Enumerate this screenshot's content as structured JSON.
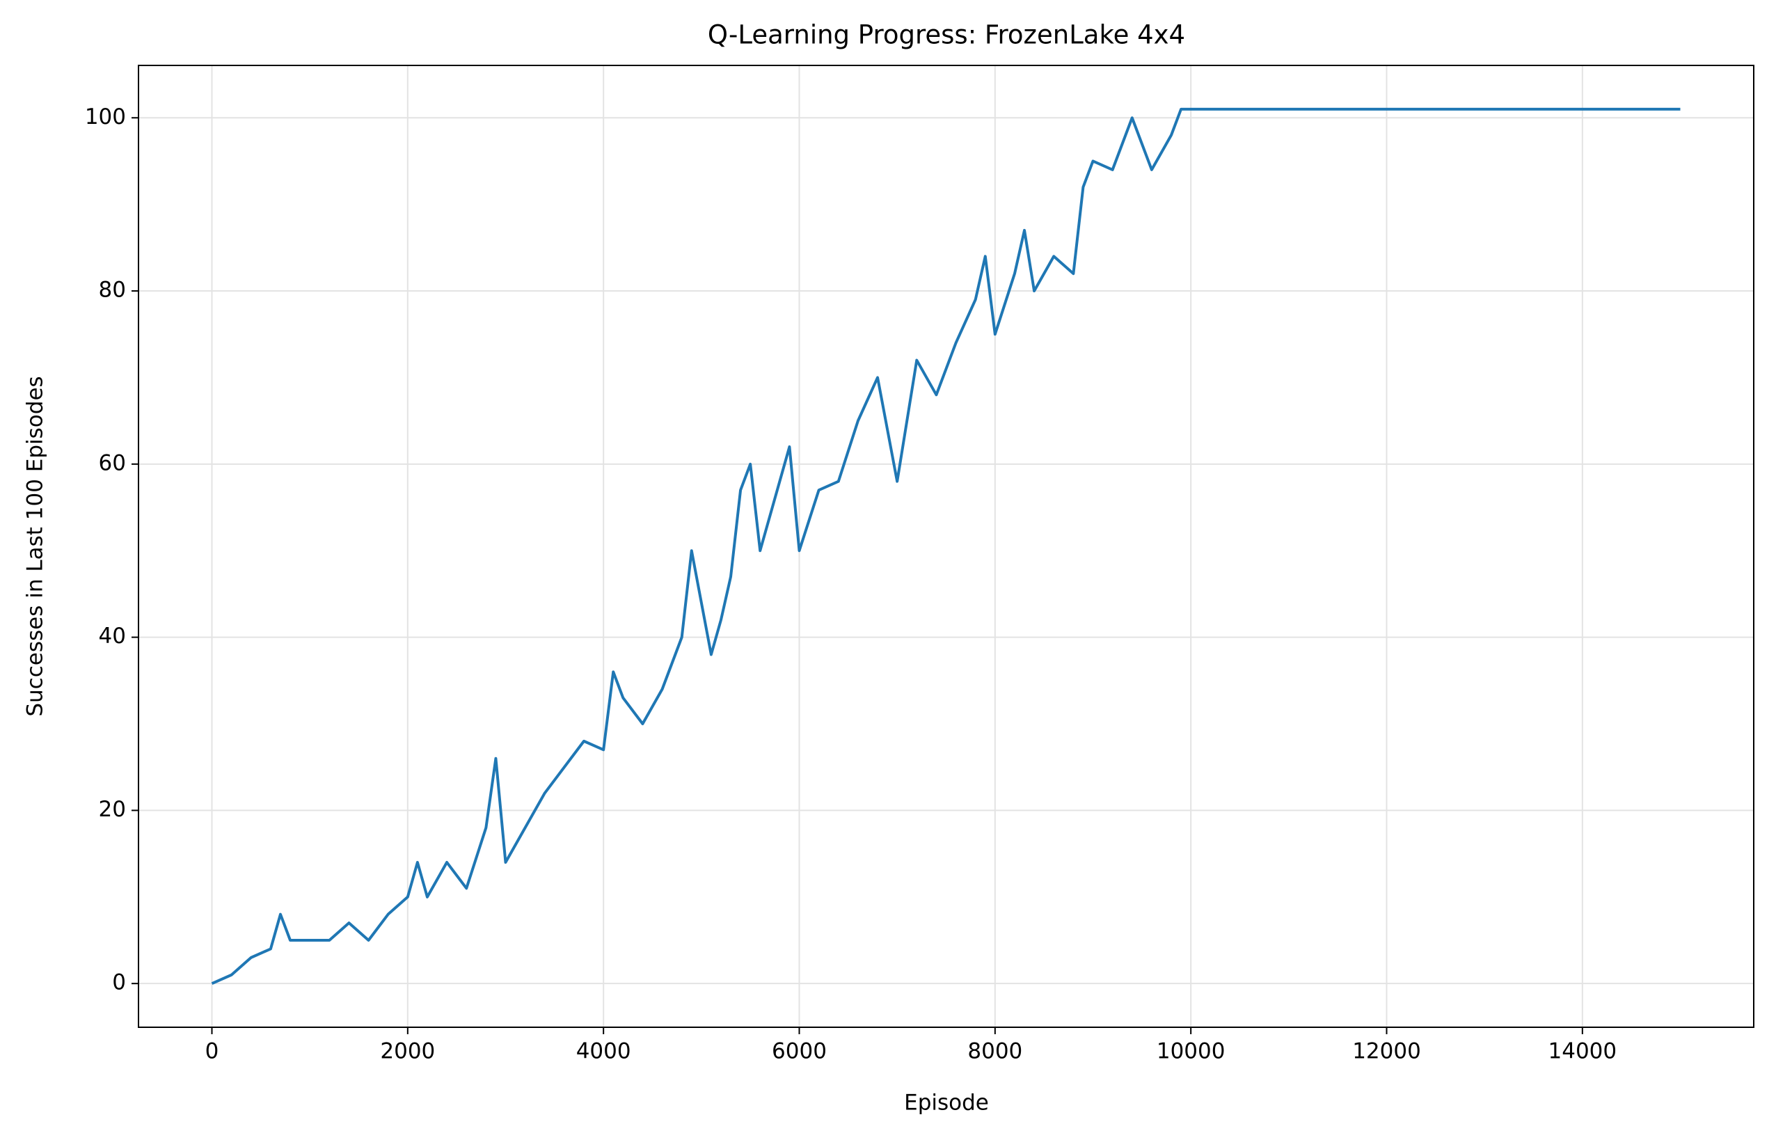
{
  "chart_data": {
    "type": "line",
    "title": "Q-Learning Progress: FrozenLake 4x4",
    "xlabel": "Episode",
    "ylabel": "Successes in Last 100 Episodes",
    "x": [
      0,
      200,
      400,
      600,
      700,
      800,
      1000,
      1200,
      1400,
      1600,
      1800,
      2000,
      2100,
      2200,
      2400,
      2600,
      2800,
      2900,
      3000,
      3200,
      3400,
      3600,
      3800,
      4000,
      4100,
      4200,
      4400,
      4600,
      4800,
      4900,
      5000,
      5100,
      5200,
      5300,
      5400,
      5500,
      5600,
      5800,
      5900,
      6000,
      6200,
      6400,
      6600,
      6800,
      7000,
      7200,
      7400,
      7600,
      7800,
      7900,
      8000,
      8200,
      8300,
      8400,
      8600,
      8800,
      8900,
      9000,
      9200,
      9400,
      9600,
      9800,
      9900,
      15000
    ],
    "series": [
      {
        "name": "Successes",
        "color": "#1f77b4",
        "values": [
          0,
          1,
          3,
          4,
          8,
          5,
          5,
          5,
          7,
          5,
          8,
          10,
          14,
          10,
          14,
          11,
          18,
          26,
          14,
          18,
          22,
          25,
          28,
          27,
          36,
          33,
          30,
          34,
          40,
          50,
          44,
          38,
          42,
          47,
          57,
          60,
          50,
          58,
          62,
          50,
          57,
          58,
          65,
          70,
          58,
          72,
          68,
          74,
          79,
          84,
          75,
          82,
          87,
          80,
          84,
          82,
          92,
          95,
          94,
          100,
          94,
          98,
          101,
          101
        ]
      }
    ],
    "xlim": [
      -750,
      15750
    ],
    "ylim": [
      -5.05,
      106.05
    ],
    "xticks": [
      0,
      2000,
      4000,
      6000,
      8000,
      10000,
      12000,
      14000
    ],
    "yticks": [
      0,
      20,
      40,
      60,
      80,
      100
    ],
    "grid": true
  }
}
